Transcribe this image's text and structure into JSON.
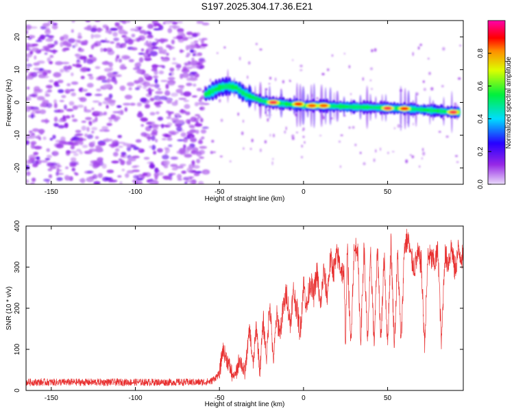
{
  "figure_title": "S197.2025.304.17.36.E21",
  "chart_data": [
    {
      "type": "heatmap",
      "title": "S197.2025.304.17.36.E21",
      "xlabel": "Height of straight line (km)",
      "ylabel": "Frequency (Hz)",
      "xlim": [
        -165,
        95
      ],
      "ylim": [
        -25,
        25
      ],
      "xticks": [
        -150,
        -100,
        -50,
        0,
        50
      ],
      "yticks": [
        -20,
        -10,
        0,
        10,
        20
      ],
      "colorbar": {
        "label": "Normalized spectral amplitude",
        "range": [
          0,
          1
        ],
        "ticks": [
          0.0,
          0.2,
          0.4,
          0.6,
          0.8
        ],
        "tick_labels": [
          "0.0",
          "0.2",
          "0.4",
          "0.6",
          "0.8"
        ]
      },
      "ridge": {
        "x": [
          -58,
          -50,
          -45,
          -40,
          -35,
          -30,
          -25,
          -20,
          -10,
          0,
          10,
          20,
          30,
          40,
          50,
          60,
          70,
          80,
          90
        ],
        "freq": [
          2.5,
          4.5,
          5.0,
          4.5,
          2.5,
          1.5,
          0.5,
          0.0,
          -0.5,
          -1.0,
          -1.0,
          -1.2,
          -1.4,
          -1.5,
          -1.7,
          -1.9,
          -2.2,
          -2.6,
          -3.0
        ]
      },
      "hotspots": [
        {
          "x": -18,
          "freq": 0.0,
          "amplitude": 0.95
        },
        {
          "x": -3,
          "freq": -0.5,
          "amplitude": 0.9
        },
        {
          "x": 5,
          "freq": -1.0,
          "amplitude": 0.85
        },
        {
          "x": 12,
          "freq": -1.0,
          "amplitude": 0.85
        },
        {
          "x": 50,
          "freq": -1.8,
          "amplitude": 0.95
        },
        {
          "x": 60,
          "freq": -1.9,
          "amplitude": 0.9
        },
        {
          "x": 89,
          "freq": -3.0,
          "amplitude": 0.95
        }
      ]
    },
    {
      "type": "line",
      "xlabel": "Height of straight line (km)",
      "ylabel": "SNR (10 * v/v)",
      "xlim": [
        -165,
        95
      ],
      "ylim": [
        0,
        400
      ],
      "xticks": [
        -150,
        -100,
        -50,
        0,
        50
      ],
      "yticks": [
        0,
        100,
        200,
        300,
        400
      ],
      "series": [
        {
          "name": "SNR",
          "color": "#e83030",
          "x": [
            -165,
            -150,
            -130,
            -110,
            -90,
            -70,
            -60,
            -55,
            -50,
            -48,
            -45,
            -42,
            -40,
            -38,
            -35,
            -32,
            -30,
            -28,
            -26,
            -24,
            -22,
            -20,
            -18,
            -16,
            -14,
            -12,
            -10,
            -8,
            -6,
            -4,
            -2,
            0,
            2,
            4,
            6,
            8,
            10,
            12,
            14,
            16,
            18,
            20,
            22,
            24,
            25,
            26,
            28,
            30,
            32,
            34,
            36,
            38,
            40,
            42,
            44,
            46,
            48,
            50,
            52,
            54,
            56,
            58,
            60,
            62,
            64,
            66,
            68,
            70,
            72,
            74,
            76,
            78,
            80,
            82,
            84,
            86,
            88,
            90,
            92,
            95
          ],
          "y": [
            20,
            20,
            20,
            20,
            20,
            20,
            20,
            22,
            40,
            100,
            70,
            35,
            40,
            80,
            40,
            150,
            60,
            160,
            45,
            170,
            80,
            220,
            70,
            180,
            140,
            200,
            240,
            160,
            240,
            200,
            140,
            260,
            200,
            270,
            230,
            290,
            200,
            290,
            230,
            320,
            290,
            330,
            300,
            280,
            110,
            350,
            110,
            330,
            360,
            120,
            350,
            110,
            330,
            110,
            350,
            120,
            330,
            110,
            360,
            110,
            330,
            110,
            350,
            370,
            320,
            300,
            330,
            310,
            110,
            330,
            320,
            310,
            340,
            110,
            330,
            310,
            350,
            290,
            340,
            320
          ]
        }
      ]
    }
  ]
}
